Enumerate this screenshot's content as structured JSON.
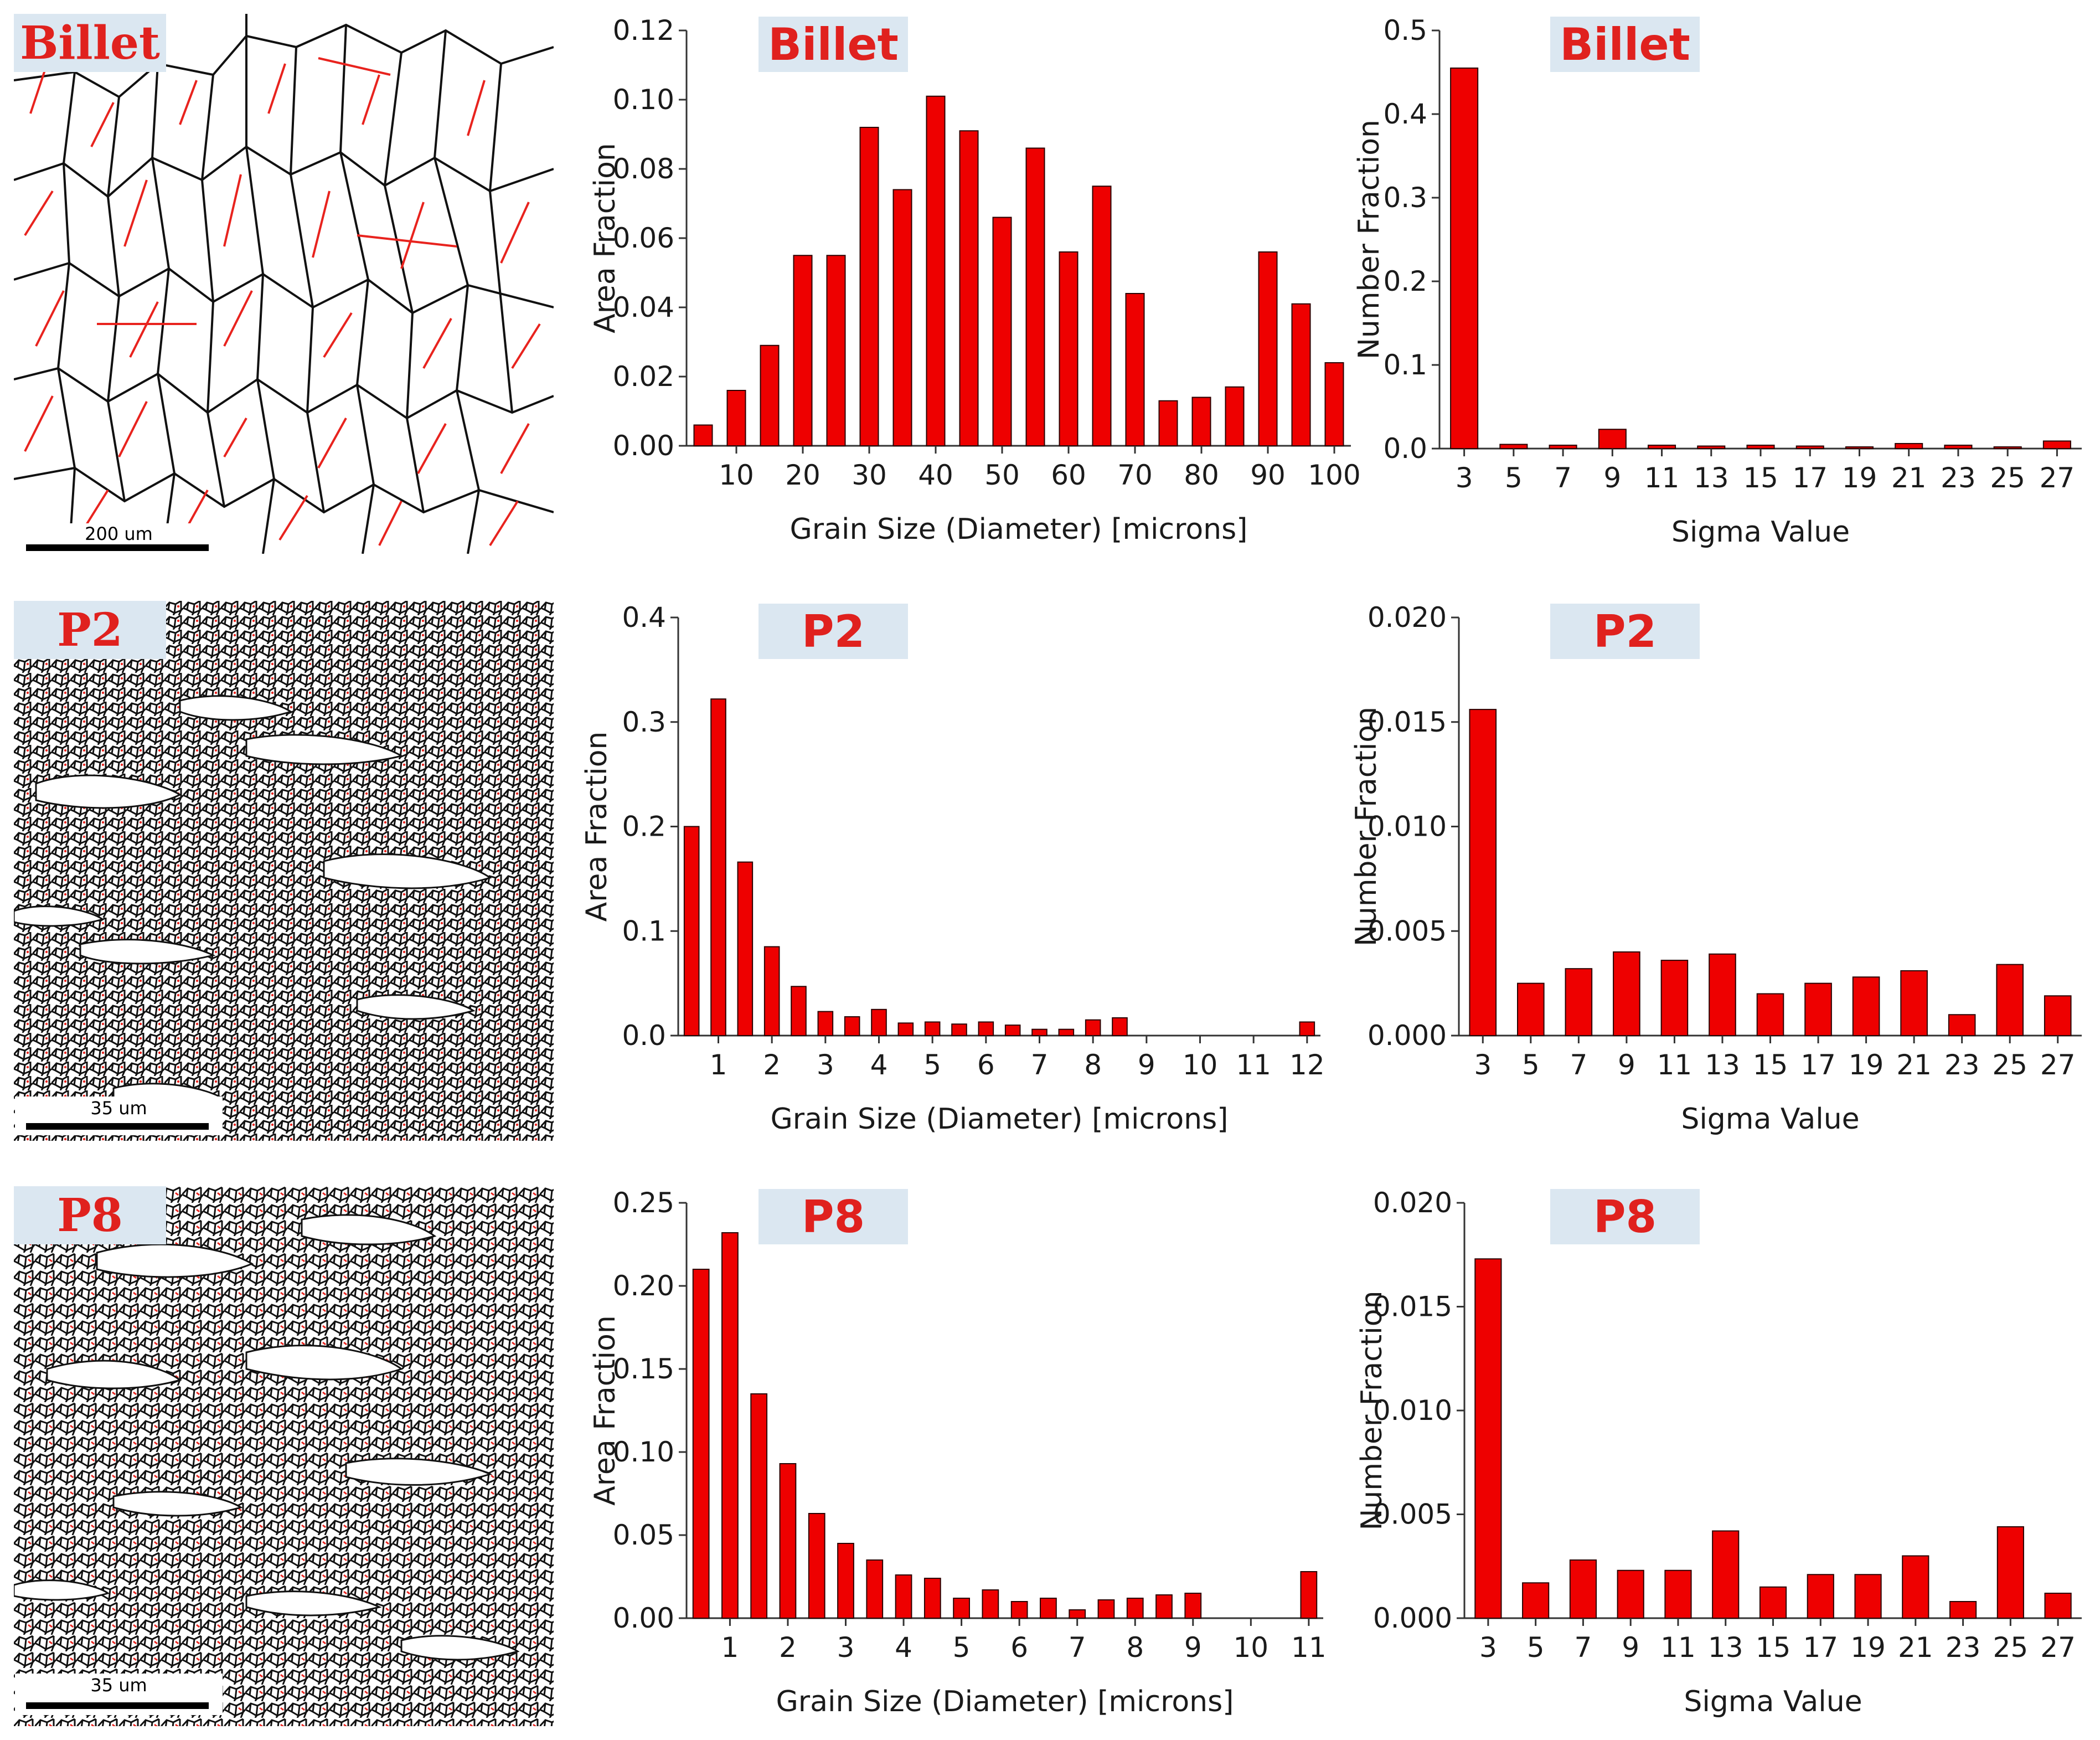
{
  "maps": [
    {
      "label": "Billet",
      "scale_label": "200 um"
    },
    {
      "label": "P2",
      "scale_label": "35 um"
    },
    {
      "label": "P8",
      "scale_label": "35 um"
    }
  ],
  "colors": {
    "bar": "#ee0000",
    "bar_edge": "#2a0000",
    "label_bg": "#dbe7f1",
    "label_text": "#e0211e",
    "twin_boundary": "#e8231e",
    "grain_boundary": "#111111"
  },
  "chart_data": [
    {
      "type": "bar",
      "title": "Billet",
      "xlabel": "Grain Size (Diameter) [microns]",
      "ylabel": "Area Fraction",
      "x": [
        5,
        10,
        15,
        20,
        25,
        30,
        35,
        40,
        45,
        50,
        55,
        60,
        65,
        70,
        75,
        80,
        85,
        90,
        95,
        100
      ],
      "values": [
        0.006,
        0.016,
        0.029,
        0.055,
        0.055,
        0.092,
        0.074,
        0.101,
        0.091,
        0.066,
        0.086,
        0.056,
        0.075,
        0.044,
        0.013,
        0.014,
        0.017,
        0.056,
        0.041,
        0.024
      ],
      "xticks": [
        10,
        20,
        30,
        40,
        50,
        60,
        70,
        80,
        90,
        100
      ],
      "xtick_labels": [
        "10",
        "20",
        "30",
        "40",
        "50",
        "60",
        "70",
        "80",
        "90",
        "100"
      ],
      "xlim": [
        2.5,
        102.5
      ],
      "ylim": [
        0,
        0.12
      ],
      "yticks": [
        0,
        0.02,
        0.04,
        0.06,
        0.08,
        0.1,
        0.12
      ],
      "ytick_labels": [
        "0.00",
        "0.02",
        "0.04",
        "0.06",
        "0.08",
        "0.10",
        "0.12"
      ]
    },
    {
      "type": "bar",
      "title": "Billet",
      "xlabel": "Sigma Value",
      "ylabel": "Number Fraction",
      "x": [
        3,
        5,
        7,
        9,
        11,
        13,
        15,
        17,
        19,
        21,
        23,
        25,
        27
      ],
      "values": [
        0.455,
        0.005,
        0.004,
        0.023,
        0.004,
        0.003,
        0.004,
        0.003,
        0.002,
        0.006,
        0.004,
        0.002,
        0.009
      ],
      "xticks": [
        3,
        5,
        7,
        9,
        11,
        13,
        15,
        17,
        19,
        21,
        23,
        25,
        27
      ],
      "xtick_labels": [
        "3",
        "5",
        "7",
        "9",
        "11",
        "13",
        "15",
        "17",
        "19",
        "21",
        "23",
        "25",
        "27"
      ],
      "xlim": [
        2,
        28
      ],
      "ylim": [
        0,
        0.5
      ],
      "yticks": [
        0,
        0.1,
        0.2,
        0.3,
        0.4,
        0.5
      ],
      "ytick_labels": [
        "0.0",
        "0.1",
        "0.2",
        "0.3",
        "0.4",
        "0.5"
      ]
    },
    {
      "type": "bar",
      "title": "P2",
      "xlabel": "Grain Size (Diameter) [microns]",
      "ylabel": "Area Fraction",
      "x": [
        0.5,
        1,
        1.5,
        2,
        2.5,
        3,
        3.5,
        4,
        4.5,
        5,
        5.5,
        6,
        6.5,
        7,
        7.5,
        8,
        8.5,
        9,
        9.5,
        10,
        12
      ],
      "values": [
        0.2,
        0.322,
        0.166,
        0.085,
        0.047,
        0.023,
        0.018,
        0.025,
        0.012,
        0.013,
        0.011,
        0.013,
        0.01,
        0.006,
        0.006,
        0.015,
        0.017,
        0,
        0,
        0,
        0.013
      ],
      "xticks": [
        1,
        2,
        3,
        4,
        5,
        6,
        7,
        8,
        9,
        10,
        11,
        12
      ],
      "xtick_labels": [
        "1",
        "2",
        "3",
        "4",
        "5",
        "6",
        "7",
        "8",
        "9",
        "10",
        "11",
        "12"
      ],
      "xlim": [
        0.25,
        12.25
      ],
      "ylim": [
        0,
        0.4
      ],
      "yticks": [
        0,
        0.1,
        0.2,
        0.3,
        0.4
      ],
      "ytick_labels": [
        "0.0",
        "0.1",
        "0.2",
        "0.3",
        "0.4"
      ]
    },
    {
      "type": "bar",
      "title": "P2",
      "xlabel": "Sigma Value",
      "ylabel": "Number Fraction",
      "x": [
        3,
        5,
        7,
        9,
        11,
        13,
        15,
        17,
        19,
        21,
        23,
        25,
        27
      ],
      "values": [
        0.0156,
        0.0025,
        0.0032,
        0.004,
        0.0036,
        0.0039,
        0.002,
        0.0025,
        0.0028,
        0.0031,
        0.001,
        0.0034,
        0.0019
      ],
      "xticks": [
        3,
        5,
        7,
        9,
        11,
        13,
        15,
        17,
        19,
        21,
        23,
        25,
        27
      ],
      "xtick_labels": [
        "3",
        "5",
        "7",
        "9",
        "11",
        "13",
        "15",
        "17",
        "19",
        "21",
        "23",
        "25",
        "27"
      ],
      "xlim": [
        2,
        28
      ],
      "ylim": [
        0,
        0.02
      ],
      "yticks": [
        0,
        0.005,
        0.01,
        0.015,
        0.02
      ],
      "ytick_labels": [
        "0.000",
        "0.005",
        "0.010",
        "0.015",
        "0.020"
      ]
    },
    {
      "type": "bar",
      "title": "P8",
      "xlabel": "Grain Size (Diameter) [microns]",
      "ylabel": "Area Fraction",
      "x": [
        0.5,
        1,
        1.5,
        2,
        2.5,
        3,
        3.5,
        4,
        4.5,
        5,
        5.5,
        6,
        6.5,
        7,
        7.5,
        8,
        8.5,
        9,
        9.5,
        10,
        10.5,
        11
      ],
      "values": [
        0.21,
        0.232,
        0.135,
        0.093,
        0.063,
        0.045,
        0.035,
        0.026,
        0.024,
        0.012,
        0.017,
        0.01,
        0.012,
        0.005,
        0.011,
        0.012,
        0.014,
        0.015,
        0,
        0,
        0,
        0.028
      ],
      "xticks": [
        1,
        2,
        3,
        4,
        5,
        6,
        7,
        8,
        9,
        10,
        11
      ],
      "xtick_labels": [
        "1",
        "2",
        "3",
        "4",
        "5",
        "6",
        "7",
        "8",
        "9",
        "10",
        "11"
      ],
      "xlim": [
        0.25,
        11.25
      ],
      "ylim": [
        0,
        0.25
      ],
      "yticks": [
        0,
        0.05,
        0.1,
        0.15,
        0.2,
        0.25
      ],
      "ytick_labels": [
        "0.00",
        "0.05",
        "0.10",
        "0.15",
        "0.20",
        "0.25"
      ]
    },
    {
      "type": "bar",
      "title": "P8",
      "xlabel": "Sigma Value",
      "ylabel": "Number Fraction",
      "x": [
        3,
        5,
        7,
        9,
        11,
        13,
        15,
        17,
        19,
        21,
        23,
        25,
        27
      ],
      "values": [
        0.0173,
        0.0017,
        0.0028,
        0.0023,
        0.0023,
        0.0042,
        0.0015,
        0.0021,
        0.0021,
        0.003,
        0.0008,
        0.0044,
        0.0012
      ],
      "xticks": [
        3,
        5,
        7,
        9,
        11,
        13,
        15,
        17,
        19,
        21,
        23,
        25,
        27
      ],
      "xtick_labels": [
        "3",
        "5",
        "7",
        "9",
        "11",
        "13",
        "15",
        "17",
        "19",
        "21",
        "23",
        "25",
        "27"
      ],
      "xlim": [
        2,
        28
      ],
      "ylim": [
        0,
        0.02
      ],
      "yticks": [
        0,
        0.005,
        0.01,
        0.015,
        0.02
      ],
      "ytick_labels": [
        "0.000",
        "0.005",
        "0.010",
        "0.015",
        "0.020"
      ]
    }
  ]
}
